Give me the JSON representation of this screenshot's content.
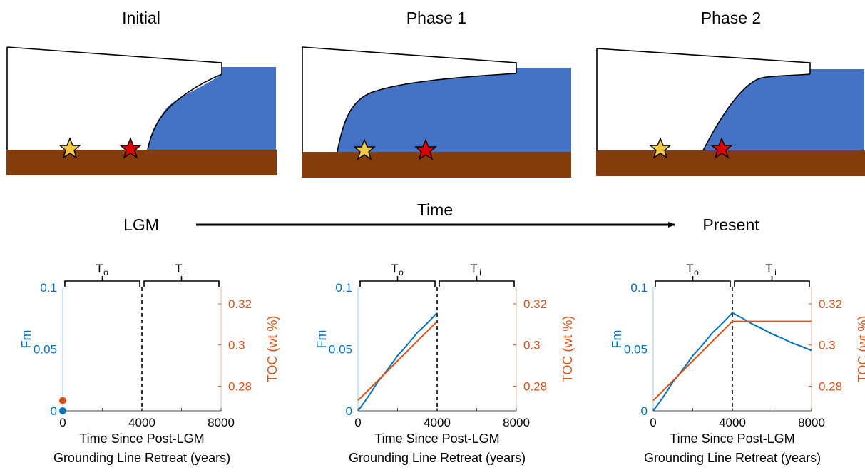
{
  "panels": [
    {
      "title": "Initial"
    },
    {
      "title": "Phase 1"
    },
    {
      "title": "Phase 2"
    }
  ],
  "timeline": {
    "start": "LGM",
    "label": "Time",
    "end": "Present"
  },
  "colors": {
    "ocean": "#4472C4",
    "sediment": "#843C0C",
    "fm_line": "#0072BD",
    "toc_line": "#D95319",
    "star_yellow": "#F2C744",
    "star_red": "#E00000"
  },
  "charts": {
    "brace_labels": {
      "left": "T",
      "left_sub": "o",
      "right": "T",
      "right_sub": "i"
    },
    "xlabel_line1": "Time Since Post-LGM",
    "xlabel_line2": "Grounding Line Retreat (years)",
    "ylabel_left": "Fm",
    "ylabel_right": "TOC (wt %)",
    "xticks": [
      "0",
      "4000",
      "8000"
    ],
    "yticks_left": [
      "0",
      "0.05",
      "0.1"
    ],
    "yticks_right": [
      "0.28",
      "0.3",
      "0.32"
    ]
  },
  "chart_data": [
    {
      "type": "scatter",
      "x_range": [
        0,
        8000
      ],
      "y_left_range": [
        0,
        0.1
      ],
      "y_right_range": [
        0.268,
        0.328
      ],
      "divider_x": 4000,
      "series": [
        {
          "axis": "left",
          "color": "#0072BD",
          "x": [
            0
          ],
          "y": [
            0
          ]
        },
        {
          "axis": "right",
          "color": "#D95319",
          "x": [
            0
          ],
          "y": [
            0.273
          ]
        }
      ]
    },
    {
      "type": "line",
      "x_range": [
        0,
        8000
      ],
      "y_left_range": [
        0,
        0.1
      ],
      "y_right_range": [
        0.268,
        0.328
      ],
      "divider_x": 4000,
      "series": [
        {
          "axis": "left",
          "color": "#0072BD",
          "x": [
            0,
            1000,
            2000,
            3000,
            4000
          ],
          "y": [
            0,
            0.0235,
            0.0447,
            0.0634,
            0.0795
          ]
        },
        {
          "axis": "right",
          "color": "#D95319",
          "x": [
            0,
            4000
          ],
          "y": [
            0.273,
            0.3115
          ]
        }
      ]
    },
    {
      "type": "line",
      "x_range": [
        0,
        8000
      ],
      "y_left_range": [
        0,
        0.1
      ],
      "y_right_range": [
        0.268,
        0.328
      ],
      "divider_x": 4000,
      "series": [
        {
          "axis": "left",
          "color": "#0072BD",
          "x": [
            0,
            1000,
            2000,
            3000,
            4000,
            5000,
            6000,
            7000,
            8000
          ],
          "y": [
            0,
            0.0235,
            0.0447,
            0.0634,
            0.0795,
            0.0704,
            0.0623,
            0.0551,
            0.0488
          ]
        },
        {
          "axis": "right",
          "color": "#D95319",
          "x": [
            0,
            4000,
            8000
          ],
          "y": [
            0.273,
            0.3115,
            0.3115
          ]
        }
      ]
    }
  ]
}
